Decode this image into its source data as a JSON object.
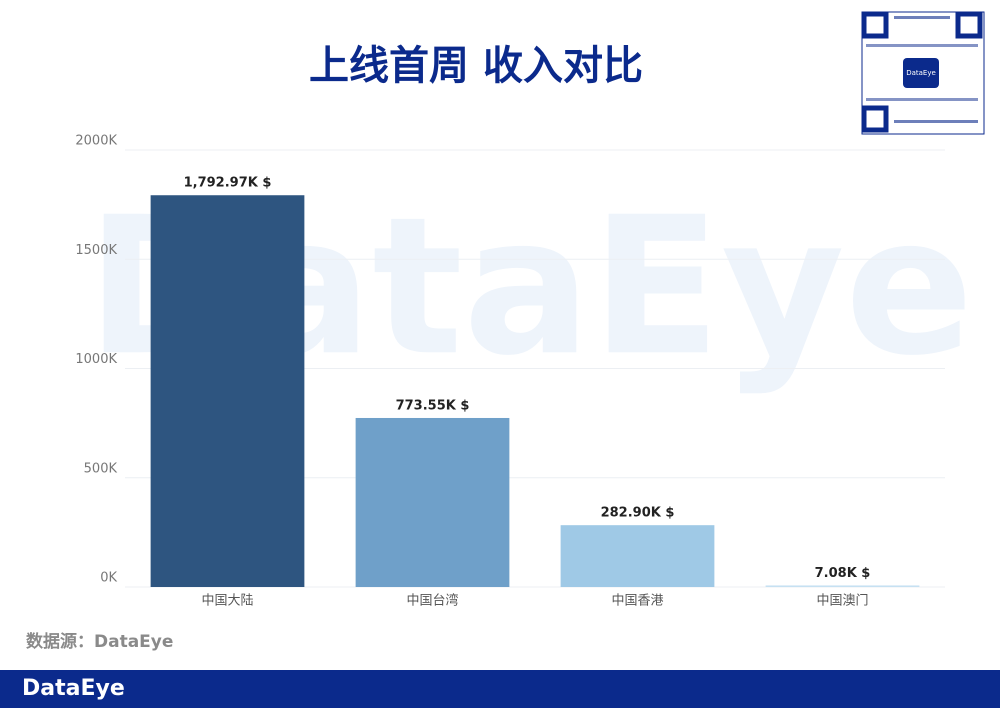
{
  "chart_data": {
    "type": "bar",
    "title": "上线首周 收入对比",
    "categories": [
      "中国大陆",
      "中国台湾",
      "中国香港",
      "中国澳门"
    ],
    "values": [
      1792.97,
      773.55,
      282.9,
      7.08
    ],
    "value_labels": [
      "1,792.97K $",
      "773.55K $",
      "282.90K $",
      "7.08K $"
    ],
    "colors": [
      "#2e5580",
      "#6fa0c9",
      "#9fc9e6",
      "#c6e1f2"
    ],
    "ylim": [
      0,
      2000
    ],
    "yticks": [
      {
        "value": 0,
        "label": "0K"
      },
      {
        "value": 500,
        "label": "500K"
      },
      {
        "value": 1000,
        "label": "1000K"
      },
      {
        "value": 1500,
        "label": "1500K"
      },
      {
        "value": 2000,
        "label": "2000K"
      }
    ],
    "grid": true,
    "source": "数据源：DataEye",
    "watermark": "DataEye",
    "footer_logo": "DataEye",
    "qr_label": "DataEye"
  }
}
